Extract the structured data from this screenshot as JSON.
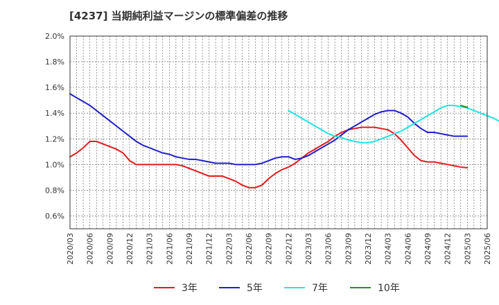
{
  "chart_data": {
    "type": "line",
    "title": "[4237]  当期純利益マージンの標準偏差の推移",
    "xlabel": "",
    "ylabel": "",
    "ylim": [
      0.5,
      2.0
    ],
    "yticks": [
      "0.6%",
      "0.8%",
      "1.0%",
      "1.2%",
      "1.4%",
      "1.6%",
      "1.8%",
      "2.0%"
    ],
    "ytick_values": [
      0.6,
      0.8,
      1.0,
      1.2,
      1.4,
      1.6,
      1.8,
      2.0
    ],
    "xticks": [
      "2020/03",
      "2020/06",
      "2020/09",
      "2020/12",
      "2021/03",
      "2021/06",
      "2021/09",
      "2021/12",
      "2022/03",
      "2022/06",
      "2022/09",
      "2022/12",
      "2023/03",
      "2023/06",
      "2023/09",
      "2023/12",
      "2024/03",
      "2024/06",
      "2024/09",
      "2024/12",
      "2025/03",
      "2025/06"
    ],
    "grid": true,
    "legend_position": "bottom",
    "x_start": "2020/03",
    "x_step_months": 1,
    "series": [
      {
        "name": "3年",
        "color": "#e31a1c",
        "start": "2020/03",
        "values": [
          1.06,
          1.09,
          1.13,
          1.18,
          1.18,
          1.16,
          1.14,
          1.12,
          1.09,
          1.03,
          1.0,
          1.0,
          1.0,
          1.0,
          1.0,
          1.0,
          1.0,
          0.99,
          0.97,
          0.95,
          0.93,
          0.91,
          0.91,
          0.91,
          0.89,
          0.87,
          0.84,
          0.82,
          0.82,
          0.84,
          0.89,
          0.93,
          0.96,
          0.98,
          1.01,
          1.05,
          1.09,
          1.12,
          1.15,
          1.18,
          1.22,
          1.25,
          1.27,
          1.28,
          1.29,
          1.29,
          1.29,
          1.28,
          1.27,
          1.24,
          1.19,
          1.13,
          1.07,
          1.03,
          1.02,
          1.02,
          1.01,
          1.0,
          0.99,
          0.98,
          0.975
        ]
      },
      {
        "name": "5年",
        "color": "#1f1fcc",
        "start": "2020/03",
        "values": [
          1.55,
          1.52,
          1.49,
          1.46,
          1.42,
          1.38,
          1.34,
          1.3,
          1.26,
          1.22,
          1.18,
          1.15,
          1.13,
          1.11,
          1.09,
          1.08,
          1.06,
          1.05,
          1.04,
          1.04,
          1.03,
          1.02,
          1.01,
          1.01,
          1.01,
          1.0,
          1.0,
          1.0,
          1.0,
          1.01,
          1.03,
          1.05,
          1.06,
          1.06,
          1.04,
          1.05,
          1.07,
          1.1,
          1.13,
          1.16,
          1.19,
          1.23,
          1.27,
          1.3,
          1.33,
          1.36,
          1.39,
          1.41,
          1.42,
          1.42,
          1.4,
          1.37,
          1.32,
          1.28,
          1.25,
          1.25,
          1.24,
          1.23,
          1.22,
          1.22,
          1.22
        ]
      },
      {
        "name": "7年",
        "color": "#1de5e5",
        "start": "2022/12",
        "values": [
          1.42,
          1.39,
          1.36,
          1.33,
          1.3,
          1.27,
          1.24,
          1.22,
          1.21,
          1.19,
          1.18,
          1.17,
          1.17,
          1.18,
          1.2,
          1.22,
          1.24,
          1.26,
          1.29,
          1.32,
          1.35,
          1.38,
          1.41,
          1.44,
          1.46,
          1.46,
          1.45,
          1.44,
          1.42,
          1.4,
          1.38,
          1.36,
          1.33,
          1.29,
          1.27,
          1.27
        ]
      },
      {
        "name": "10年",
        "color": "#2e8b2e",
        "start": "2025/02",
        "values": [
          1.46,
          1.445
        ]
      }
    ]
  }
}
